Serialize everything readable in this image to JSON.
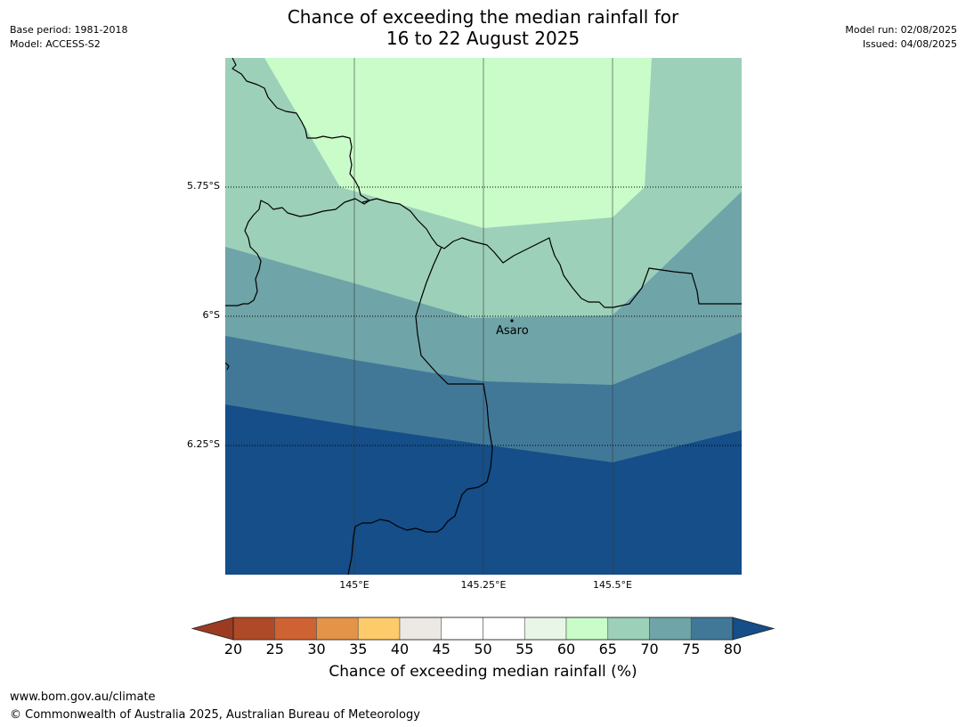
{
  "title": {
    "line1": "Chance of exceeding the median rainfall for",
    "line2": "16 to 22 August 2025"
  },
  "meta_left": {
    "base_period": "Base period: 1981-2018",
    "model": "Model: ACCESS-S2"
  },
  "meta_right": {
    "model_run": "Model run: 02/08/2025",
    "issued": "Issued: 04/08/2025"
  },
  "map": {
    "lat_labels": [
      "5.75°S",
      "6°S",
      "6.25°S"
    ],
    "lon_labels": [
      "145°E",
      "145.25°E",
      "145.5°E"
    ],
    "place": "Asaro",
    "band_colors": {
      "55-60": "#e8f6e8",
      "60-65": "#c9fcc9",
      "65-70": "#9dd0b9",
      "70-75": "#6fa4a8",
      "75-80": "#417898",
      "80+": "#154e88"
    }
  },
  "colorbar": {
    "ticks": [
      "20",
      "25",
      "30",
      "35",
      "40",
      "45",
      "50",
      "55",
      "60",
      "65",
      "70",
      "75",
      "80"
    ],
    "colors": [
      "#ae4a27",
      "#cf6232",
      "#e39448",
      "#fdcb6a",
      "#ece8e4",
      "#ffffff",
      "#ffffff",
      "#e8f6e8",
      "#c9fcc9",
      "#9dd0b9",
      "#6fa4a8",
      "#417898"
    ],
    "under_color": "#9c3b22",
    "over_color": "#154e88",
    "label": "Chance of exceeding median rainfall (%)"
  },
  "footer": {
    "url": "www.bom.gov.au/climate",
    "copyright": "© Commonwealth of Australia 2025, Australian Bureau of Meteorology"
  }
}
